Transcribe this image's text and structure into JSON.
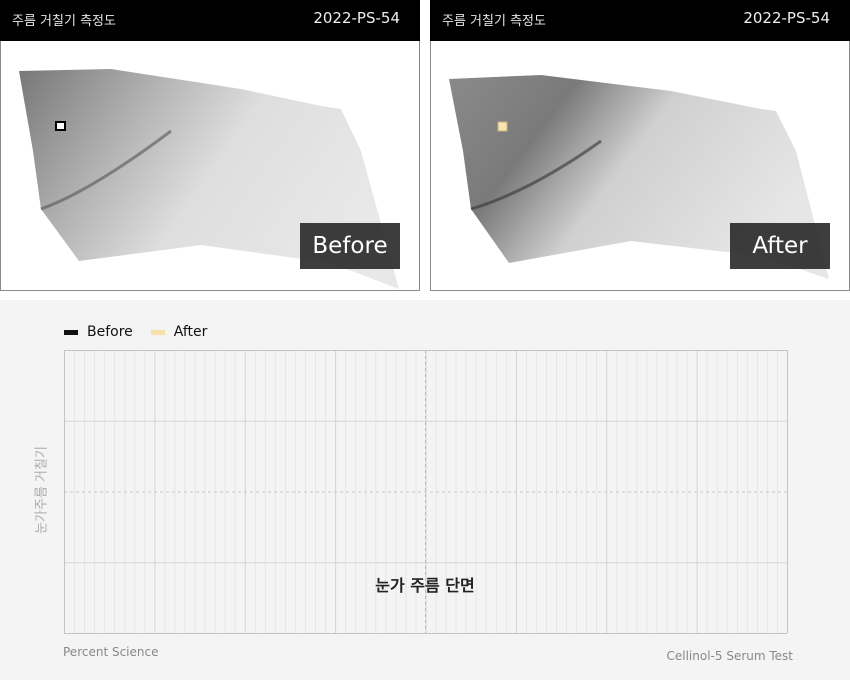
{
  "panels": [
    {
      "title": "주름 거칠기 측정도",
      "id": "2022-PS-54",
      "tag": "Before",
      "marker_color": "#ffffff"
    },
    {
      "title": "주름 거칠기 측정도",
      "id": "2022-PS-54",
      "tag": "After",
      "marker_color": "#f7e4b0"
    }
  ],
  "chart_data": {
    "type": "line",
    "series": [
      {
        "name": "Before",
        "color": "#111111",
        "values": []
      },
      {
        "name": "After",
        "color": "#f7e1a6",
        "values": []
      }
    ],
    "ylabel": "눈가주름 거칠기",
    "annotation": "눈가 주름 단면",
    "grid": true,
    "legend": "top-left"
  },
  "footer": {
    "left": "Percent Science",
    "right": "Cellinol-5 Serum Test"
  }
}
